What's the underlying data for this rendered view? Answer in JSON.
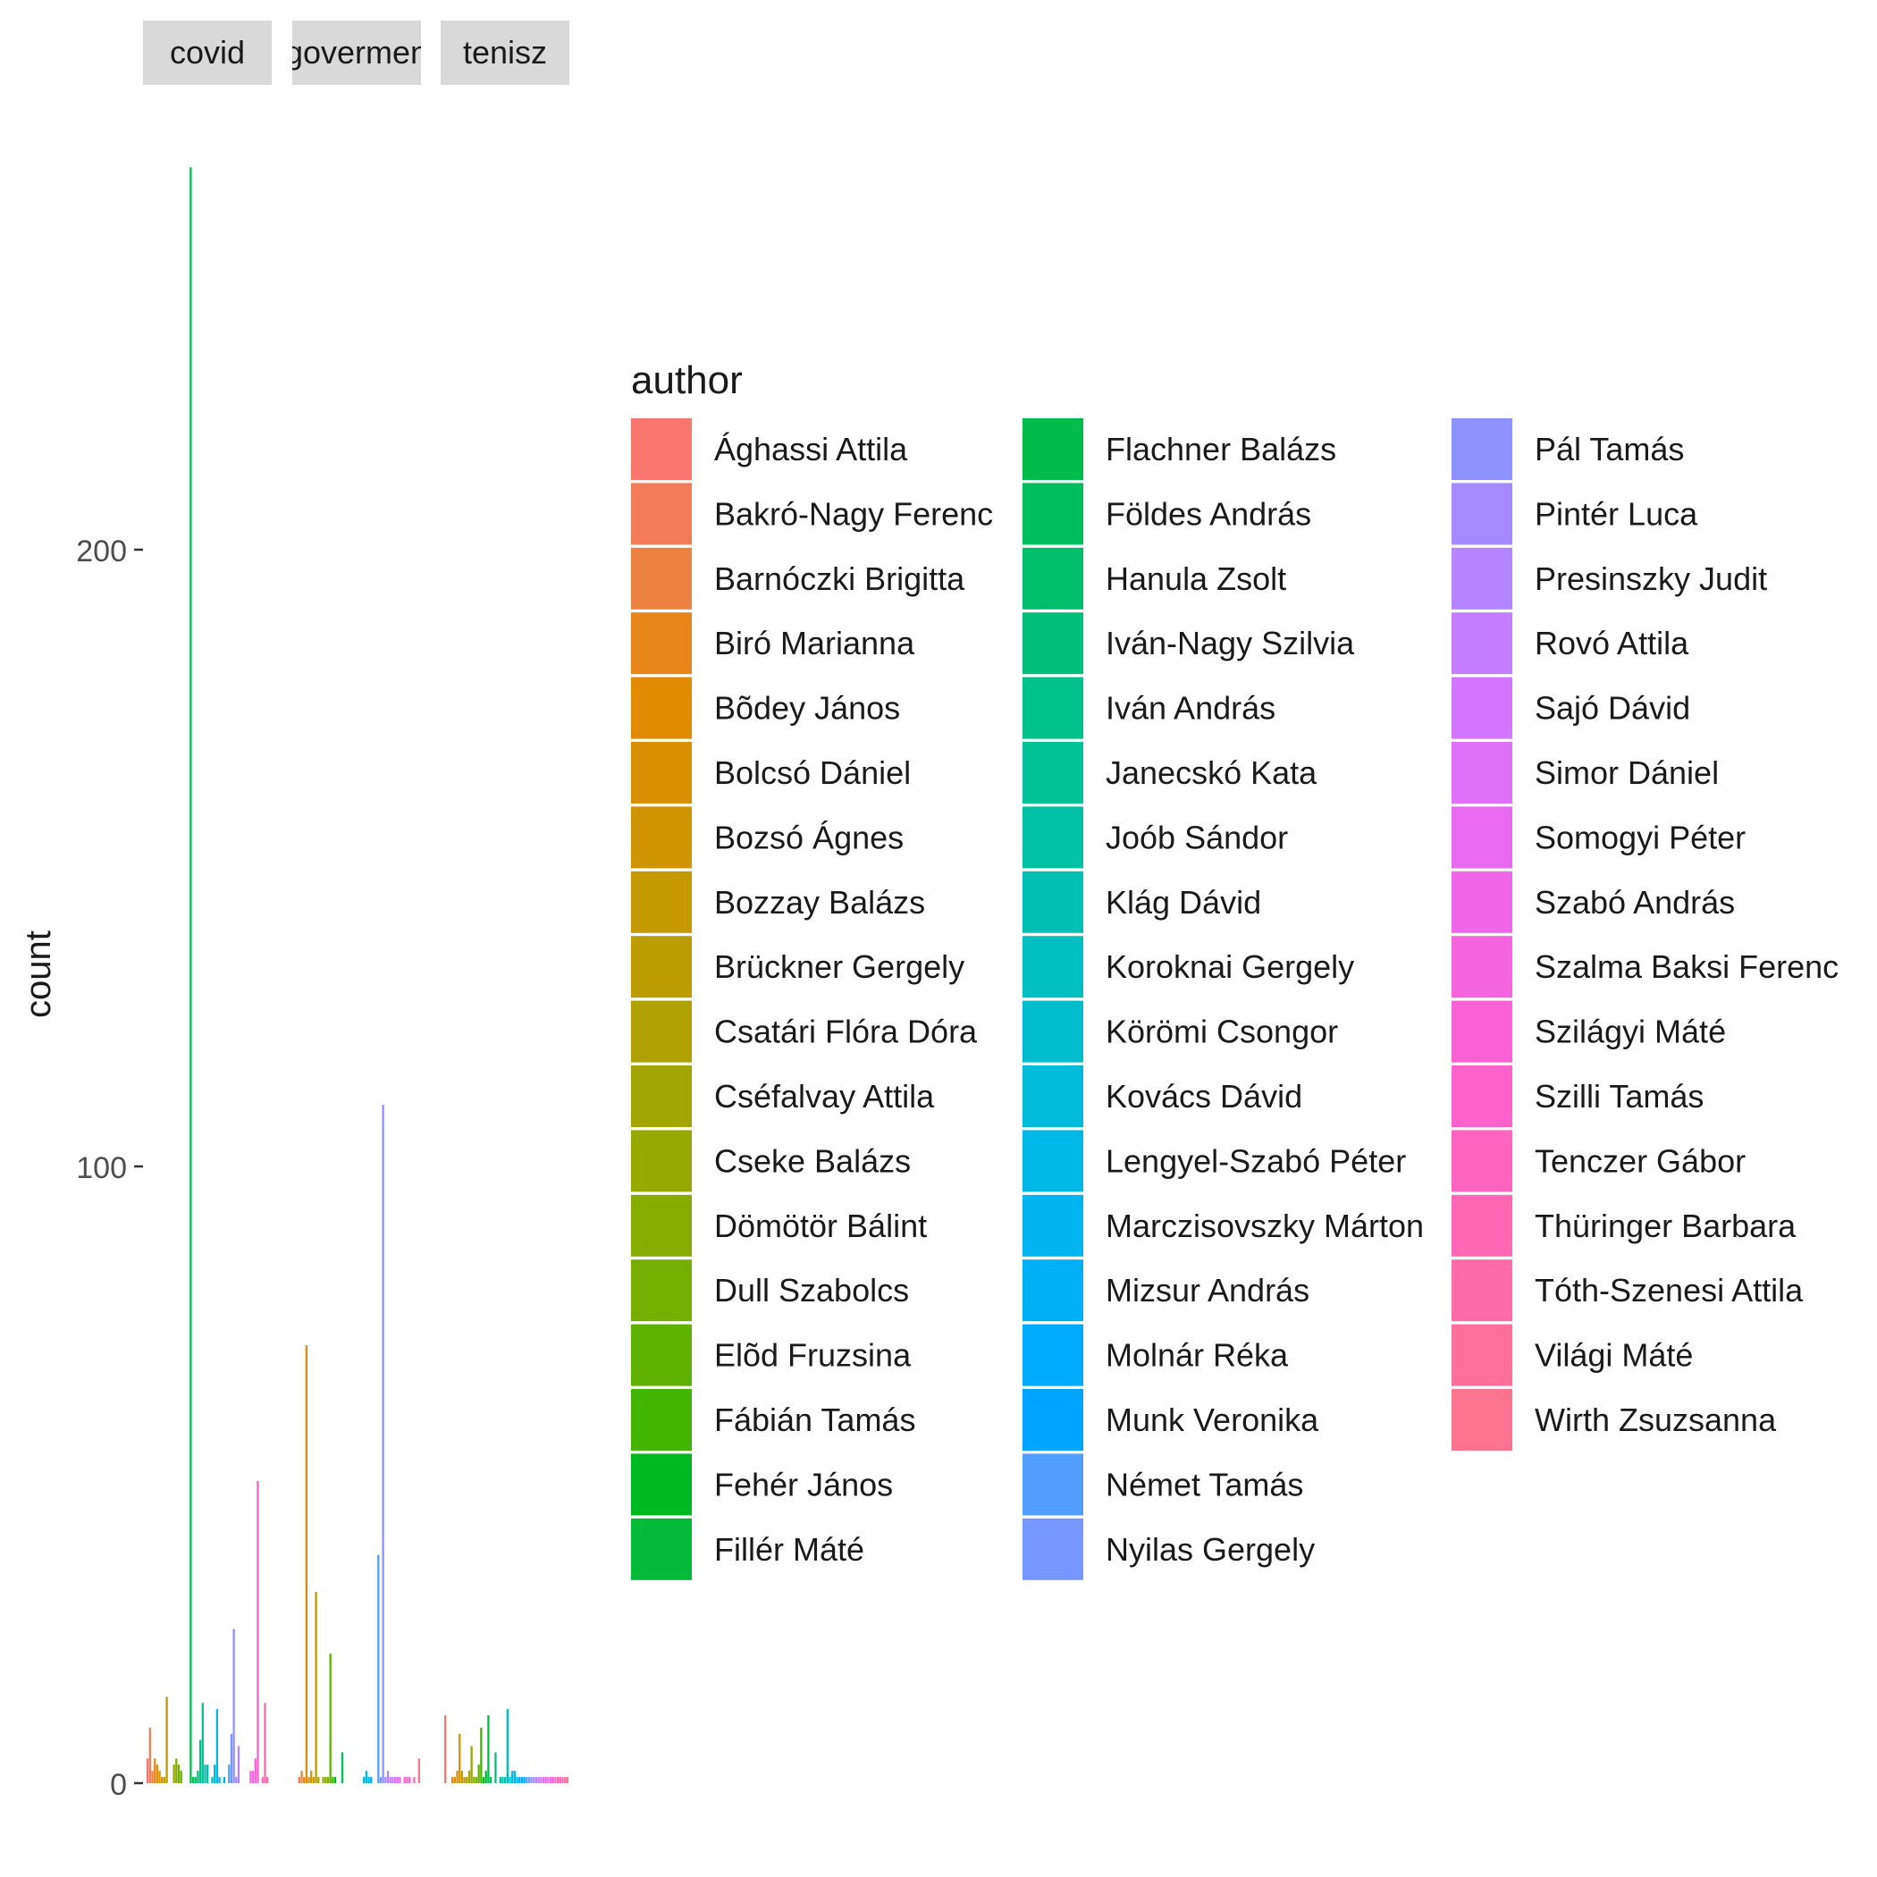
{
  "chart_data": {
    "type": "bar",
    "facets": [
      "covid",
      "govermen",
      "tenisz"
    ],
    "ylabel": "count",
    "xlabel": "",
    "ylim": [
      0,
      262
    ],
    "yticks": [
      0,
      100,
      200
    ],
    "grid": false,
    "legend": {
      "title": "author",
      "placement": "right",
      "entries": [
        {
          "name": "Ághassi Attila",
          "color": "#F8766D"
        },
        {
          "name": "Bakró-Nagy Ferenc",
          "color": "#F37B59"
        },
        {
          "name": "Barnóczki Brigitta",
          "color": "#ED8141"
        },
        {
          "name": "Biró Marianna",
          "color": "#E7861B"
        },
        {
          "name": "Bõdey János",
          "color": "#E08B00"
        },
        {
          "name": "Bolcsó Dániel",
          "color": "#D89000"
        },
        {
          "name": "Bozsó Ágnes",
          "color": "#CF9400"
        },
        {
          "name": "Bozzay Balázs",
          "color": "#C59900"
        },
        {
          "name": "Brückner Gergely",
          "color": "#BB9D00"
        },
        {
          "name": "Csatári Flóra Dóra",
          "color": "#B0A100"
        },
        {
          "name": "Cséfalvay Attila",
          "color": "#A3A500"
        },
        {
          "name": "Cseke Balázs",
          "color": "#95A900"
        },
        {
          "name": "Dömötör Bálint",
          "color": "#86AC00"
        },
        {
          "name": "Dull Szabolcs",
          "color": "#75AF00"
        },
        {
          "name": "Elõd Fruzsina",
          "color": "#5FB200"
        },
        {
          "name": "Fábián Tamás",
          "color": "#42B500"
        },
        {
          "name": "Fehér János",
          "color": "#00B81F"
        },
        {
          "name": "Fillér Máté",
          "color": "#00BA38"
        },
        {
          "name": "Flachner Balázs",
          "color": "#00BC4B"
        },
        {
          "name": "Földes András",
          "color": "#00BE5C"
        },
        {
          "name": "Hanula Zsolt",
          "color": "#00BF6C"
        },
        {
          "name": "Iván-Nagy Szilvia",
          "color": "#00C07B"
        },
        {
          "name": "Iván András",
          "color": "#00C18A"
        },
        {
          "name": "Janecskó Kata",
          "color": "#00C198"
        },
        {
          "name": "Joób Sándor",
          "color": "#00C1A6"
        },
        {
          "name": "Klág Dávid",
          "color": "#00C0B4"
        },
        {
          "name": "Koroknai Gergely",
          "color": "#00BFC1"
        },
        {
          "name": "Körömi Csongor",
          "color": "#00BDCE"
        },
        {
          "name": "Kovács Dávid",
          "color": "#00BBDA"
        },
        {
          "name": "Lengyel-Szabó Péter",
          "color": "#00B8E5"
        },
        {
          "name": "Marczisovszky Márton",
          "color": "#00B4EF"
        },
        {
          "name": "Mizsur András",
          "color": "#00B0F6"
        },
        {
          "name": "Molnár Réka",
          "color": "#00ABFD"
        },
        {
          "name": "Munk Veronika",
          "color": "#00A5FF"
        },
        {
          "name": "Német Tamás",
          "color": "#529EFF"
        },
        {
          "name": "Nyilas Gergely",
          "color": "#7597FF"
        },
        {
          "name": "Pál Tamás",
          "color": "#8F91FF"
        },
        {
          "name": "Pintér Luca",
          "color": "#A58AFF"
        },
        {
          "name": "Presinszky Judit",
          "color": "#B584FF"
        },
        {
          "name": "Rovó Attila",
          "color": "#C57DFF"
        },
        {
          "name": "Sajó Dávid",
          "color": "#D376FF"
        },
        {
          "name": "Simor Dániel",
          "color": "#DF70F8"
        },
        {
          "name": "Somogyi Péter",
          "color": "#E86AF0"
        },
        {
          "name": "Szabó András",
          "color": "#F066E8"
        },
        {
          "name": "Szalma Baksi Ferenc",
          "color": "#F664DE"
        },
        {
          "name": "Szilágyi Máté",
          "color": "#FB61D5"
        },
        {
          "name": "Szilli Tamás",
          "color": "#FF62CB"
        },
        {
          "name": "Tenczer Gábor",
          "color": "#FF64C0"
        },
        {
          "name": "Thüringer Barbara",
          "color": "#FF67B5"
        },
        {
          "name": "Tóth-Szenesi Attila",
          "color": "#FF6BA9"
        },
        {
          "name": "Világi Máté",
          "color": "#FF6F9D"
        },
        {
          "name": "Wirth Zsuzsanna",
          "color": "#FC7490"
        }
      ]
    },
    "authors": [
      "Ághassi Attila",
      "Bakró-Nagy Ferenc",
      "Barnóczki Brigitta",
      "Biró Marianna",
      "Bõdey János",
      "Bolcsó Dániel",
      "Bozsó Ágnes",
      "Bozzay Balázs",
      "Brückner Gergely",
      "Csatári Flóra Dóra",
      "Cséfalvay Attila",
      "Cseke Balázs",
      "Dömötör Bálint",
      "Dull Szabolcs",
      "Elõd Fruzsina",
      "Fábián Tamás",
      "Fehér János",
      "Fillér Máté",
      "Flachner Balázs",
      "Földes András",
      "Hanula Zsolt",
      "Iván-Nagy Szilvia",
      "Iván András",
      "Janecskó Kata",
      "Joób Sándor",
      "Klág Dávid",
      "Koroknai Gergely",
      "Körömi Csongor",
      "Kovács Dávid",
      "Lengyel-Szabó Péter",
      "Marczisovszky Márton",
      "Mizsur András",
      "Molnár Réka",
      "Munk Veronika",
      "Német Tamás",
      "Nyilas Gergely",
      "Pál Tamás",
      "Pintér Luca",
      "Presinszky Judit",
      "Rovó Attila",
      "Sajó Dávid",
      "Simor Dániel",
      "Somogyi Péter",
      "Szabó András",
      "Szalma Baksi Ferenc",
      "Szilágyi Máté",
      "Szilli Tamás",
      "Tenczer Gábor",
      "Thüringer Barbara",
      "Tóth-Szenesi Attila",
      "Világi Máté",
      "Wirth Zsuzsanna"
    ],
    "series": [
      {
        "name": "covid",
        "values": [
          4,
          9,
          2,
          4,
          3,
          2,
          1,
          1,
          14,
          0,
          0,
          3,
          4,
          3,
          2,
          0,
          0,
          0,
          262,
          1,
          1,
          2,
          7,
          13,
          3,
          3,
          0,
          1,
          3,
          12,
          1,
          0,
          1,
          0,
          3,
          8,
          25,
          1,
          6,
          0,
          0,
          0,
          0,
          2,
          2,
          4,
          49,
          0,
          1,
          13,
          1,
          0
        ]
      },
      {
        "name": "govermen",
        "values": [
          0,
          1,
          2,
          1,
          71,
          1,
          2,
          1,
          31,
          1,
          0,
          1,
          1,
          1,
          21,
          1,
          1,
          0,
          0,
          5,
          0,
          0,
          0,
          0,
          0,
          0,
          0,
          0,
          1,
          2,
          1,
          1,
          0,
          0,
          37,
          1,
          110,
          1,
          2,
          1,
          1,
          1,
          1,
          1,
          0,
          1,
          1,
          1,
          0,
          1,
          0,
          4
        ]
      },
      {
        "name": "tenisz",
        "values": [
          11,
          0,
          0,
          1,
          1,
          2,
          8,
          2,
          1,
          1,
          2,
          6,
          1,
          1,
          3,
          9,
          1,
          2,
          11,
          1,
          0,
          5,
          0,
          1,
          1,
          1,
          12,
          1,
          2,
          2,
          1,
          1,
          1,
          1,
          1,
          1,
          1,
          1,
          1,
          1,
          1,
          1,
          1,
          1,
          1,
          1,
          1,
          1,
          1,
          1,
          1,
          1
        ]
      }
    ]
  }
}
